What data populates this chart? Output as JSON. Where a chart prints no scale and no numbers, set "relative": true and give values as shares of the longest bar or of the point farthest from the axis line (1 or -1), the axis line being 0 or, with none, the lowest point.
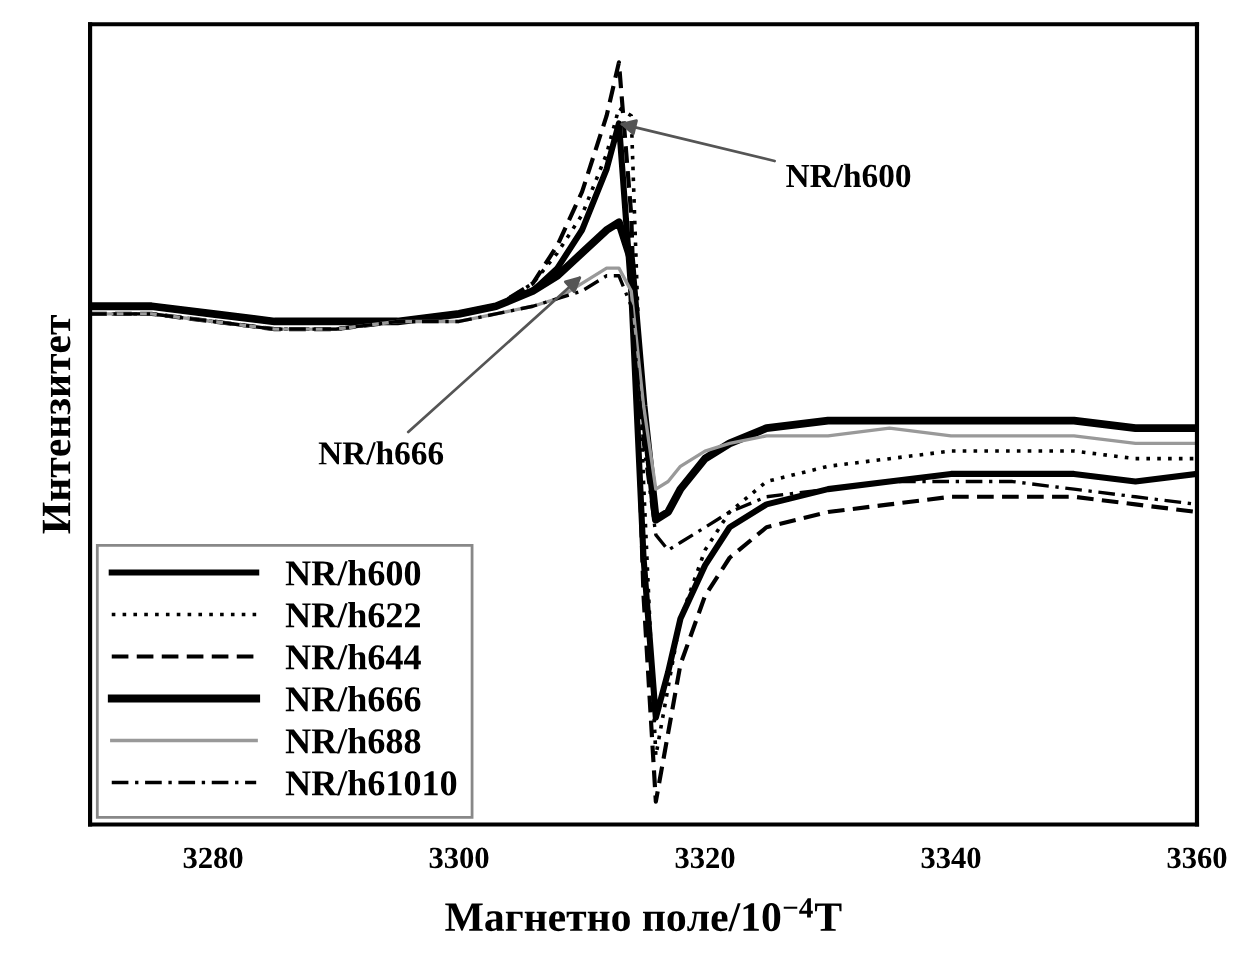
{
  "chart_data": {
    "type": "line",
    "relative": true,
    "xlabel": "Магнетно поле/10$^{−4}$T",
    "ylabel": "Интензитет",
    "x": [
      3270,
      3275,
      3280,
      3285,
      3290,
      3295,
      3300,
      3303,
      3306,
      3308,
      3310,
      3312,
      3313,
      3314,
      3315,
      3316,
      3317,
      3318,
      3320,
      3322,
      3325,
      3330,
      3335,
      3340,
      3345,
      3350,
      3355,
      3360
    ],
    "xlim": [
      3270,
      3360
    ],
    "xticks": [
      3280,
      3300,
      3320,
      3340,
      3360
    ],
    "series": [
      {
        "name": "NR/h600",
        "color": "#000000",
        "line_style": "solid",
        "values": [
          0.68,
          0.68,
          0.67,
          0.66,
          0.66,
          0.66,
          0.67,
          0.68,
          0.7,
          0.73,
          0.78,
          0.86,
          0.92,
          0.7,
          0.35,
          0.14,
          0.2,
          0.27,
          0.34,
          0.39,
          0.42,
          0.44,
          0.45,
          0.46,
          0.46,
          0.46,
          0.45,
          0.46
        ]
      },
      {
        "name": "NR/h622",
        "color": "#000000",
        "line_style": "dotted",
        "values": [
          0.67,
          0.67,
          0.66,
          0.65,
          0.65,
          0.66,
          0.67,
          0.68,
          0.71,
          0.75,
          0.8,
          0.88,
          0.94,
          0.93,
          0.45,
          0.09,
          0.18,
          0.27,
          0.36,
          0.41,
          0.45,
          0.47,
          0.48,
          0.49,
          0.49,
          0.49,
          0.48,
          0.48
        ]
      },
      {
        "name": "NR/h644",
        "color": "#000000",
        "line_style": "dashed",
        "values": [
          0.67,
          0.67,
          0.66,
          0.65,
          0.65,
          0.66,
          0.67,
          0.68,
          0.71,
          0.76,
          0.83,
          0.93,
          1.0,
          0.8,
          0.3,
          0.03,
          0.12,
          0.21,
          0.3,
          0.35,
          0.39,
          0.41,
          0.42,
          0.43,
          0.43,
          0.43,
          0.42,
          0.41
        ]
      },
      {
        "name": "NR/h666",
        "color": "#000000",
        "line_style": "solid",
        "values": [
          0.68,
          0.68,
          0.67,
          0.66,
          0.66,
          0.66,
          0.67,
          0.68,
          0.7,
          0.72,
          0.75,
          0.78,
          0.79,
          0.74,
          0.55,
          0.4,
          0.41,
          0.44,
          0.48,
          0.5,
          0.52,
          0.53,
          0.53,
          0.53,
          0.53,
          0.53,
          0.52,
          0.52
        ]
      },
      {
        "name": "NR/h688",
        "color": "#999999",
        "line_style": "solid",
        "values": [
          0.67,
          0.67,
          0.66,
          0.65,
          0.65,
          0.66,
          0.66,
          0.67,
          0.68,
          0.69,
          0.71,
          0.73,
          0.73,
          0.7,
          0.55,
          0.44,
          0.45,
          0.47,
          0.49,
          0.5,
          0.51,
          0.51,
          0.52,
          0.51,
          0.51,
          0.51,
          0.5,
          0.5
        ]
      },
      {
        "name": "NR/h61010",
        "color": "#000000",
        "line_style": "dashdot",
        "values": [
          0.67,
          0.67,
          0.66,
          0.65,
          0.65,
          0.66,
          0.66,
          0.67,
          0.68,
          0.69,
          0.7,
          0.72,
          0.72,
          0.68,
          0.5,
          0.38,
          0.36,
          0.37,
          0.39,
          0.41,
          0.43,
          0.44,
          0.45,
          0.45,
          0.45,
          0.44,
          0.43,
          0.42
        ]
      }
    ],
    "annotations": [
      {
        "text": "NR/h600",
        "x": 3313,
        "y": 0.92
      },
      {
        "text": "NR/h666",
        "x": 3310,
        "y": 0.72
      }
    ],
    "legend": "bottom left",
    "grid": false,
    "marker": "none"
  }
}
